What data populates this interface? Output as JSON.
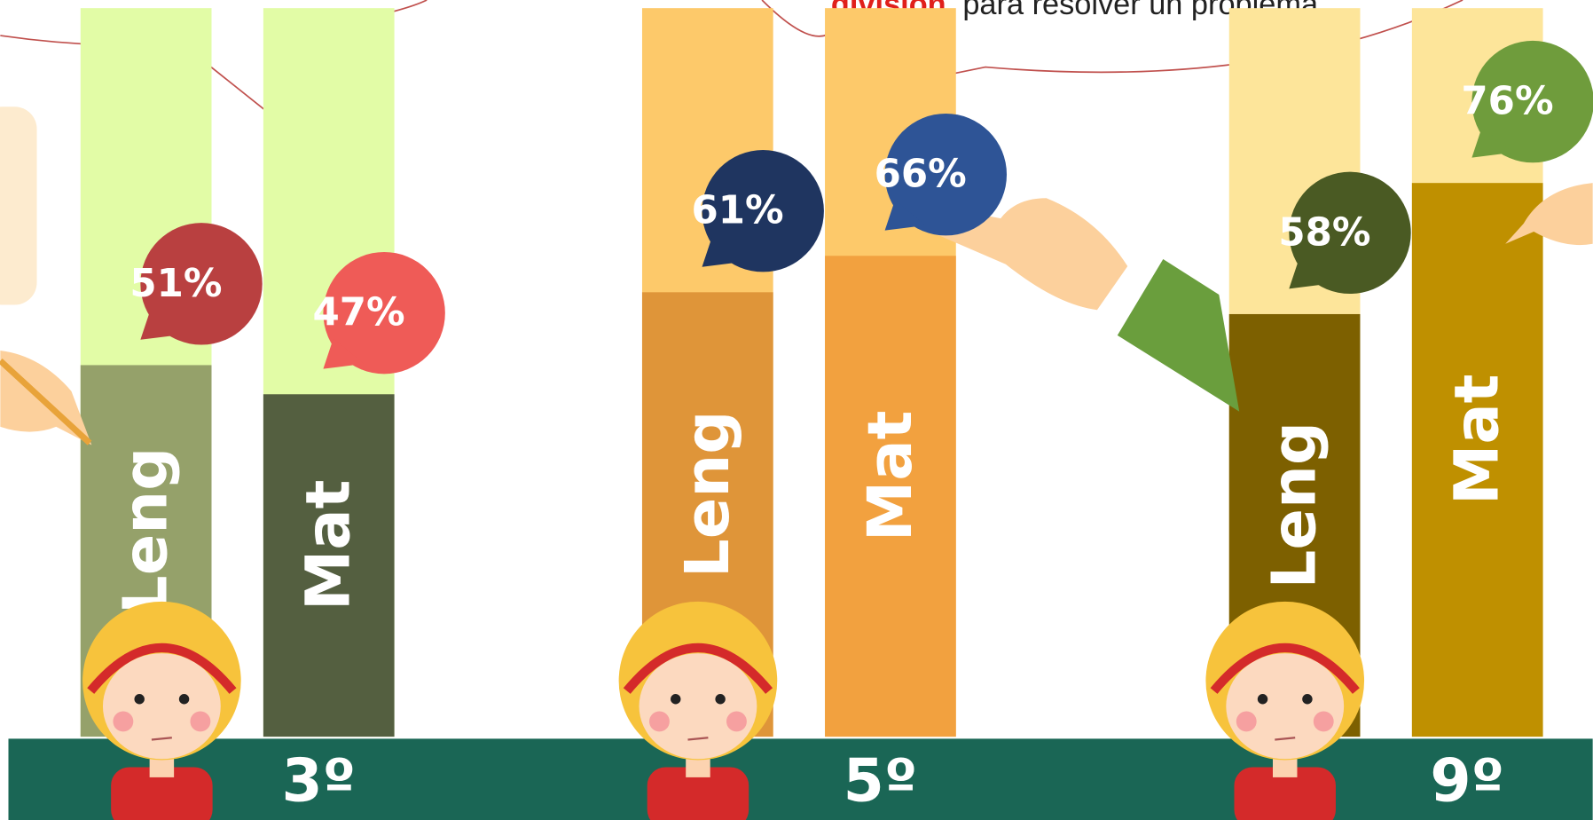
{
  "chart_data": {
    "type": "bar",
    "annotation": {
      "highlight": "división",
      "text": "para resolver un problema"
    },
    "categories": [
      "3º",
      "5º",
      "9º"
    ],
    "ylim": [
      0,
      100
    ],
    "series": [
      {
        "name": "Leng",
        "values": [
          51,
          61,
          58
        ],
        "value_labels": [
          "51%",
          "61%",
          "58%"
        ],
        "colors": [
          "#95a16a",
          "#df9539",
          "#7d6000"
        ],
        "background_colors": [
          "#e2fca6",
          "#fdc96a",
          "#fde59a"
        ],
        "bubble_colors": [
          "#b94040",
          "#1f3560",
          "#4a5a23"
        ]
      },
      {
        "name": "Mat",
        "values": [
          47,
          66,
          76
        ],
        "value_labels": [
          "47%",
          "66%",
          "76%"
        ],
        "colors": [
          "#545f40",
          "#f2a13f",
          "#bf9000"
        ],
        "background_colors": [
          "#e2fca6",
          "#fdc96a",
          "#fde59a"
        ],
        "bubble_colors": [
          "#ef5b57",
          "#2e5496",
          "#6f9c3c"
        ]
      }
    ]
  }
}
